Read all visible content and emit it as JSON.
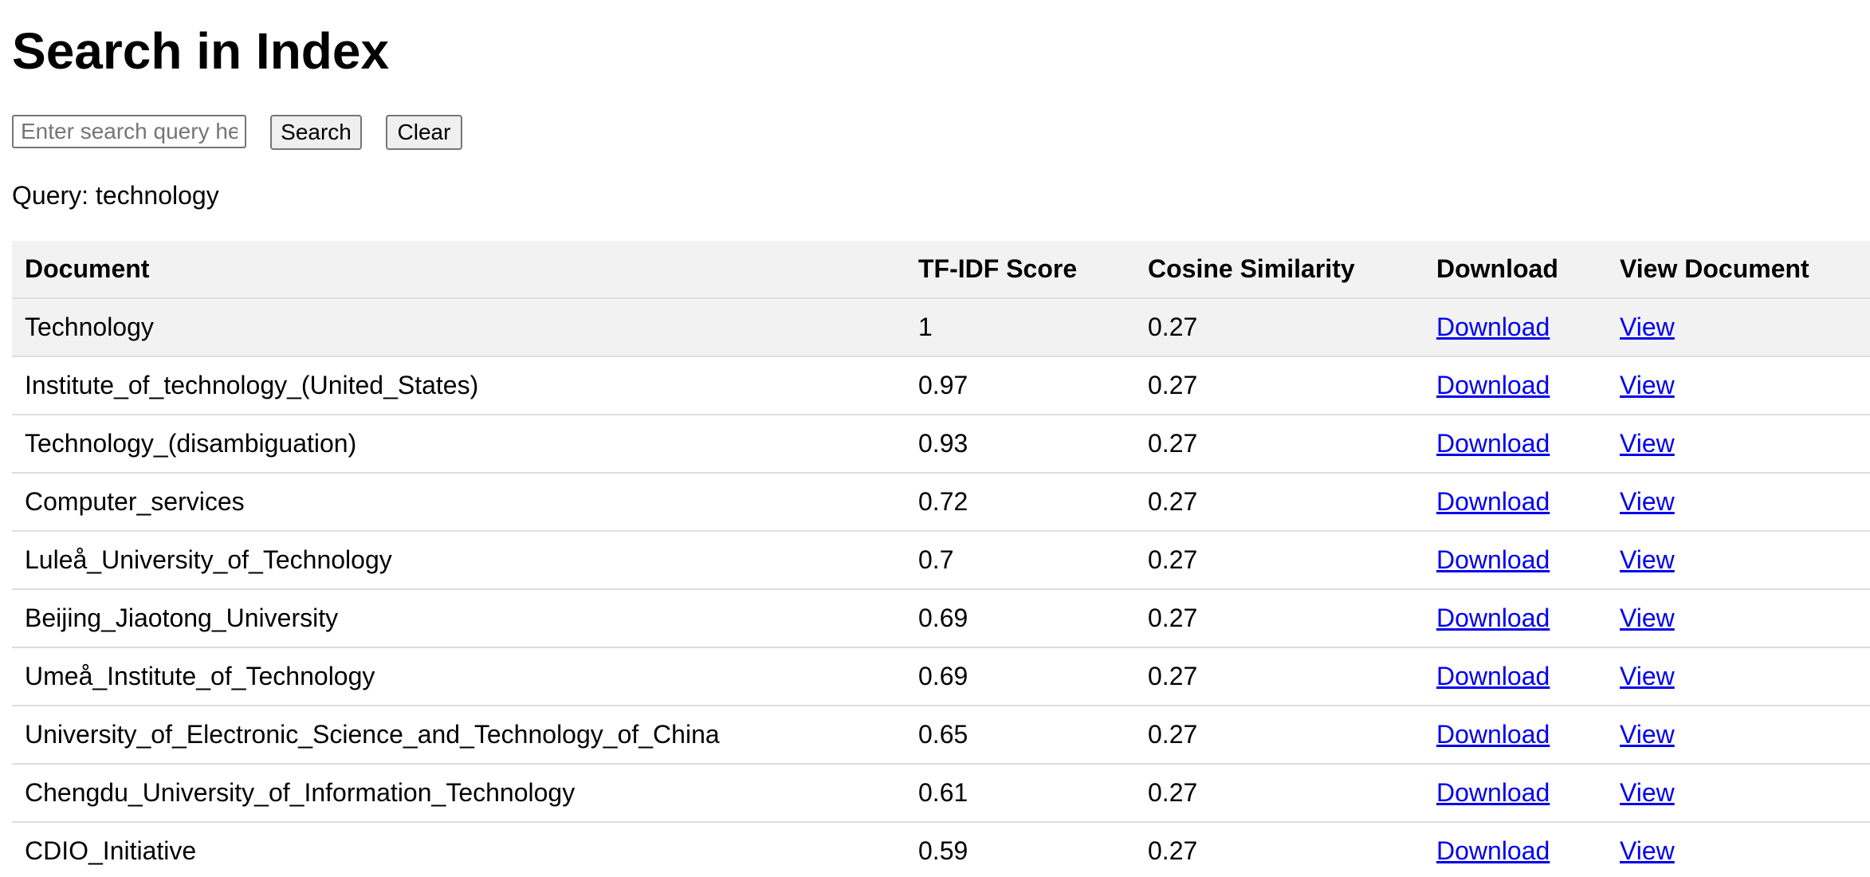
{
  "page_title": "Search in Index",
  "search": {
    "placeholder": "Enter search query here",
    "value": "",
    "search_label": "Search",
    "clear_label": "Clear"
  },
  "query": {
    "label": "Query:",
    "value": "technology"
  },
  "results": {
    "columns": [
      "Document",
      "TF-IDF Score",
      "Cosine Similarity",
      "Download",
      "View Document"
    ],
    "rows": [
      {
        "document": "Technology",
        "tfidf": "1",
        "cosine": "0.27",
        "download": "Download",
        "view": "View"
      },
      {
        "document": "Institute_of_technology_(United_States)",
        "tfidf": "0.97",
        "cosine": "0.27",
        "download": "Download",
        "view": "View"
      },
      {
        "document": "Technology_(disambiguation)",
        "tfidf": "0.93",
        "cosine": "0.27",
        "download": "Download",
        "view": "View"
      },
      {
        "document": "Computer_services",
        "tfidf": "0.72",
        "cosine": "0.27",
        "download": "Download",
        "view": "View"
      },
      {
        "document": "Luleå_University_of_Technology",
        "tfidf": "0.7",
        "cosine": "0.27",
        "download": "Download",
        "view": "View"
      },
      {
        "document": "Beijing_Jiaotong_University",
        "tfidf": "0.69",
        "cosine": "0.27",
        "download": "Download",
        "view": "View"
      },
      {
        "document": "Umeå_Institute_of_Technology",
        "tfidf": "0.69",
        "cosine": "0.27",
        "download": "Download",
        "view": "View"
      },
      {
        "document": "University_of_Electronic_Science_and_Technology_of_China",
        "tfidf": "0.65",
        "cosine": "0.27",
        "download": "Download",
        "view": "View"
      },
      {
        "document": "Chengdu_University_of_Information_Technology",
        "tfidf": "0.61",
        "cosine": "0.27",
        "download": "Download",
        "view": "View"
      },
      {
        "document": "CDIO_Initiative",
        "tfidf": "0.59",
        "cosine": "0.27",
        "download": "Download",
        "view": "View"
      }
    ]
  },
  "colors": {
    "link": "#0000ee",
    "header_background": "#f2f2f2",
    "row_border": "#dddddd",
    "button_background": "#efefef"
  }
}
